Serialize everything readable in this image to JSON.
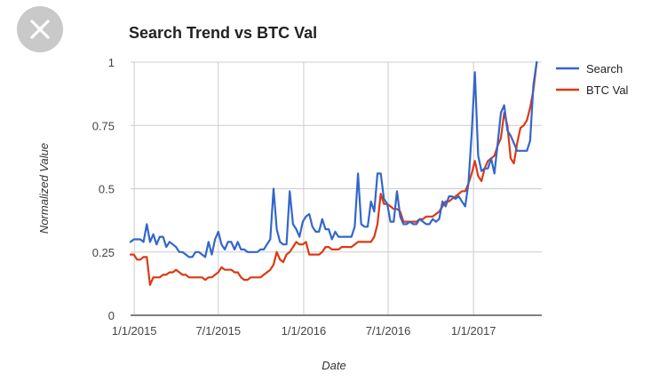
{
  "close_button": {
    "icon": "close-icon",
    "bg_color": "#c9c9c9"
  },
  "chart_data": {
    "type": "line",
    "title": "Search Trend vs BTC Val",
    "xlabel": "Date",
    "ylabel": "Normalized Value",
    "x_ticks": [
      "1/1/2015",
      "7/1/2015",
      "1/1/2016",
      "7/1/2016",
      "1/1/2017"
    ],
    "y_ticks": [
      "0",
      "0.25",
      "0.5",
      "0.75",
      "1"
    ],
    "ylim": [
      0,
      1
    ],
    "xlim": [
      "2014-12-24",
      "2017-05-28"
    ],
    "grid": true,
    "legend": "right",
    "series": [
      {
        "name": "Search",
        "color": "#3366cc",
        "points": [
          [
            "2014-12-24",
            0.29
          ],
          [
            "2014-12-31",
            0.3
          ],
          [
            "2015-01-07",
            0.3
          ],
          [
            "2015-01-14",
            0.3
          ],
          [
            "2015-01-21",
            0.29
          ],
          [
            "2015-01-28",
            0.36
          ],
          [
            "2015-02-04",
            0.29
          ],
          [
            "2015-02-11",
            0.32
          ],
          [
            "2015-02-18",
            0.28
          ],
          [
            "2015-02-25",
            0.31
          ],
          [
            "2015-03-04",
            0.31
          ],
          [
            "2015-03-11",
            0.27
          ],
          [
            "2015-03-18",
            0.29
          ],
          [
            "2015-03-25",
            0.28
          ],
          [
            "2015-04-01",
            0.27
          ],
          [
            "2015-04-08",
            0.25
          ],
          [
            "2015-04-15",
            0.25
          ],
          [
            "2015-04-22",
            0.24
          ],
          [
            "2015-04-29",
            0.23
          ],
          [
            "2015-05-06",
            0.23
          ],
          [
            "2015-05-13",
            0.25
          ],
          [
            "2015-05-20",
            0.25
          ],
          [
            "2015-05-27",
            0.24
          ],
          [
            "2015-06-03",
            0.23
          ],
          [
            "2015-06-10",
            0.29
          ],
          [
            "2015-06-17",
            0.24
          ],
          [
            "2015-06-24",
            0.3
          ],
          [
            "2015-07-01",
            0.33
          ],
          [
            "2015-07-08",
            0.28
          ],
          [
            "2015-07-15",
            0.26
          ],
          [
            "2015-07-22",
            0.29
          ],
          [
            "2015-07-29",
            0.29
          ],
          [
            "2015-08-05",
            0.26
          ],
          [
            "2015-08-12",
            0.29
          ],
          [
            "2015-08-19",
            0.26
          ],
          [
            "2015-08-26",
            0.26
          ],
          [
            "2015-09-02",
            0.25
          ],
          [
            "2015-09-09",
            0.25
          ],
          [
            "2015-09-16",
            0.25
          ],
          [
            "2015-09-23",
            0.25
          ],
          [
            "2015-09-30",
            0.26
          ],
          [
            "2015-10-07",
            0.26
          ],
          [
            "2015-10-14",
            0.28
          ],
          [
            "2015-10-21",
            0.3
          ],
          [
            "2015-10-28",
            0.5
          ],
          [
            "2015-11-04",
            0.34
          ],
          [
            "2015-11-11",
            0.29
          ],
          [
            "2015-11-18",
            0.28
          ],
          [
            "2015-11-25",
            0.28
          ],
          [
            "2015-12-02",
            0.49
          ],
          [
            "2015-12-09",
            0.36
          ],
          [
            "2015-12-16",
            0.34
          ],
          [
            "2015-12-23",
            0.31
          ],
          [
            "2015-12-30",
            0.37
          ],
          [
            "2016-01-06",
            0.39
          ],
          [
            "2016-01-13",
            0.4
          ],
          [
            "2016-01-20",
            0.35
          ],
          [
            "2016-01-27",
            0.33
          ],
          [
            "2016-02-03",
            0.33
          ],
          [
            "2016-02-10",
            0.38
          ],
          [
            "2016-02-17",
            0.34
          ],
          [
            "2016-02-24",
            0.34
          ],
          [
            "2016-03-02",
            0.3
          ],
          [
            "2016-03-09",
            0.33
          ],
          [
            "2016-03-16",
            0.31
          ],
          [
            "2016-03-23",
            0.31
          ],
          [
            "2016-03-30",
            0.31
          ],
          [
            "2016-04-06",
            0.31
          ],
          [
            "2016-04-13",
            0.31
          ],
          [
            "2016-04-20",
            0.35
          ],
          [
            "2016-04-27",
            0.56
          ],
          [
            "2016-05-04",
            0.36
          ],
          [
            "2016-05-11",
            0.35
          ],
          [
            "2016-05-18",
            0.35
          ],
          [
            "2016-05-25",
            0.45
          ],
          [
            "2016-06-01",
            0.41
          ],
          [
            "2016-06-08",
            0.56
          ],
          [
            "2016-06-15",
            0.56
          ],
          [
            "2016-06-22",
            0.46
          ],
          [
            "2016-06-29",
            0.44
          ],
          [
            "2016-07-06",
            0.37
          ],
          [
            "2016-07-13",
            0.37
          ],
          [
            "2016-07-20",
            0.49
          ],
          [
            "2016-07-27",
            0.39
          ],
          [
            "2016-08-03",
            0.36
          ],
          [
            "2016-08-10",
            0.36
          ],
          [
            "2016-08-17",
            0.37
          ],
          [
            "2016-08-24",
            0.36
          ],
          [
            "2016-08-31",
            0.36
          ],
          [
            "2016-09-07",
            0.38
          ],
          [
            "2016-09-14",
            0.37
          ],
          [
            "2016-09-21",
            0.36
          ],
          [
            "2016-09-28",
            0.36
          ],
          [
            "2016-10-05",
            0.38
          ],
          [
            "2016-10-12",
            0.37
          ],
          [
            "2016-10-19",
            0.38
          ],
          [
            "2016-10-26",
            0.45
          ],
          [
            "2016-11-02",
            0.43
          ],
          [
            "2016-11-09",
            0.47
          ],
          [
            "2016-11-16",
            0.47
          ],
          [
            "2016-11-23",
            0.46
          ],
          [
            "2016-11-30",
            0.47
          ],
          [
            "2016-12-07",
            0.45
          ],
          [
            "2016-12-14",
            0.43
          ],
          [
            "2016-12-21",
            0.52
          ],
          [
            "2016-12-28",
            0.72
          ],
          [
            "2017-01-04",
            0.96
          ],
          [
            "2017-01-11",
            0.63
          ],
          [
            "2017-01-18",
            0.57
          ],
          [
            "2017-01-25",
            0.58
          ],
          [
            "2017-02-01",
            0.58
          ],
          [
            "2017-02-08",
            0.62
          ],
          [
            "2017-02-15",
            0.56
          ],
          [
            "2017-02-22",
            0.68
          ],
          [
            "2017-03-01",
            0.8
          ],
          [
            "2017-03-08",
            0.83
          ],
          [
            "2017-03-15",
            0.73
          ],
          [
            "2017-03-22",
            0.71
          ],
          [
            "2017-03-29",
            0.68
          ],
          [
            "2017-04-05",
            0.65
          ],
          [
            "2017-04-12",
            0.65
          ],
          [
            "2017-04-19",
            0.65
          ],
          [
            "2017-04-26",
            0.65
          ],
          [
            "2017-05-03",
            0.69
          ],
          [
            "2017-05-10",
            0.91
          ],
          [
            "2017-05-17",
            1.0
          ]
        ]
      },
      {
        "name": "BTC Val",
        "color": "#dc3912",
        "points": [
          [
            "2014-12-24",
            0.24
          ],
          [
            "2014-12-31",
            0.24
          ],
          [
            "2015-01-07",
            0.22
          ],
          [
            "2015-01-14",
            0.22
          ],
          [
            "2015-01-21",
            0.23
          ],
          [
            "2015-01-28",
            0.23
          ],
          [
            "2015-02-04",
            0.12
          ],
          [
            "2015-02-11",
            0.15
          ],
          [
            "2015-02-18",
            0.15
          ],
          [
            "2015-02-25",
            0.15
          ],
          [
            "2015-03-04",
            0.16
          ],
          [
            "2015-03-11",
            0.16
          ],
          [
            "2015-03-18",
            0.17
          ],
          [
            "2015-03-25",
            0.17
          ],
          [
            "2015-04-01",
            0.18
          ],
          [
            "2015-04-08",
            0.17
          ],
          [
            "2015-04-15",
            0.16
          ],
          [
            "2015-04-22",
            0.16
          ],
          [
            "2015-04-29",
            0.15
          ],
          [
            "2015-05-06",
            0.15
          ],
          [
            "2015-05-13",
            0.15
          ],
          [
            "2015-05-20",
            0.15
          ],
          [
            "2015-05-27",
            0.15
          ],
          [
            "2015-06-03",
            0.14
          ],
          [
            "2015-06-10",
            0.15
          ],
          [
            "2015-06-17",
            0.15
          ],
          [
            "2015-06-24",
            0.16
          ],
          [
            "2015-07-01",
            0.17
          ],
          [
            "2015-07-08",
            0.19
          ],
          [
            "2015-07-15",
            0.18
          ],
          [
            "2015-07-22",
            0.18
          ],
          [
            "2015-07-29",
            0.18
          ],
          [
            "2015-08-05",
            0.17
          ],
          [
            "2015-08-12",
            0.17
          ],
          [
            "2015-08-19",
            0.15
          ],
          [
            "2015-08-26",
            0.14
          ],
          [
            "2015-09-02",
            0.14
          ],
          [
            "2015-09-09",
            0.15
          ],
          [
            "2015-09-16",
            0.15
          ],
          [
            "2015-09-23",
            0.15
          ],
          [
            "2015-09-30",
            0.15
          ],
          [
            "2015-10-07",
            0.16
          ],
          [
            "2015-10-14",
            0.17
          ],
          [
            "2015-10-21",
            0.18
          ],
          [
            "2015-10-28",
            0.2
          ],
          [
            "2015-11-04",
            0.25
          ],
          [
            "2015-11-11",
            0.22
          ],
          [
            "2015-11-18",
            0.21
          ],
          [
            "2015-11-25",
            0.24
          ],
          [
            "2015-12-02",
            0.25
          ],
          [
            "2015-12-09",
            0.27
          ],
          [
            "2015-12-16",
            0.29
          ],
          [
            "2015-12-23",
            0.28
          ],
          [
            "2015-12-30",
            0.28
          ],
          [
            "2016-01-06",
            0.29
          ],
          [
            "2016-01-13",
            0.24
          ],
          [
            "2016-01-20",
            0.24
          ],
          [
            "2016-01-27",
            0.24
          ],
          [
            "2016-02-03",
            0.24
          ],
          [
            "2016-02-10",
            0.25
          ],
          [
            "2016-02-17",
            0.27
          ],
          [
            "2016-02-24",
            0.27
          ],
          [
            "2016-03-02",
            0.26
          ],
          [
            "2016-03-09",
            0.26
          ],
          [
            "2016-03-16",
            0.26
          ],
          [
            "2016-03-23",
            0.27
          ],
          [
            "2016-03-30",
            0.27
          ],
          [
            "2016-04-06",
            0.27
          ],
          [
            "2016-04-13",
            0.27
          ],
          [
            "2016-04-20",
            0.28
          ],
          [
            "2016-04-27",
            0.29
          ],
          [
            "2016-05-04",
            0.29
          ],
          [
            "2016-05-11",
            0.29
          ],
          [
            "2016-05-18",
            0.29
          ],
          [
            "2016-05-25",
            0.29
          ],
          [
            "2016-06-01",
            0.31
          ],
          [
            "2016-06-08",
            0.36
          ],
          [
            "2016-06-15",
            0.48
          ],
          [
            "2016-06-22",
            0.44
          ],
          [
            "2016-06-29",
            0.44
          ],
          [
            "2016-07-06",
            0.43
          ],
          [
            "2016-07-13",
            0.42
          ],
          [
            "2016-07-20",
            0.42
          ],
          [
            "2016-07-27",
            0.41
          ],
          [
            "2016-08-03",
            0.37
          ],
          [
            "2016-08-10",
            0.37
          ],
          [
            "2016-08-17",
            0.37
          ],
          [
            "2016-08-24",
            0.37
          ],
          [
            "2016-08-31",
            0.37
          ],
          [
            "2016-09-07",
            0.38
          ],
          [
            "2016-09-14",
            0.38
          ],
          [
            "2016-09-21",
            0.39
          ],
          [
            "2016-09-28",
            0.39
          ],
          [
            "2016-10-05",
            0.39
          ],
          [
            "2016-10-12",
            0.4
          ],
          [
            "2016-10-19",
            0.41
          ],
          [
            "2016-10-26",
            0.43
          ],
          [
            "2016-11-02",
            0.45
          ],
          [
            "2016-11-09",
            0.45
          ],
          [
            "2016-11-16",
            0.46
          ],
          [
            "2016-11-23",
            0.47
          ],
          [
            "2016-11-30",
            0.48
          ],
          [
            "2016-12-07",
            0.49
          ],
          [
            "2016-12-14",
            0.49
          ],
          [
            "2016-12-21",
            0.52
          ],
          [
            "2016-12-28",
            0.56
          ],
          [
            "2017-01-04",
            0.61
          ],
          [
            "2017-01-11",
            0.55
          ],
          [
            "2017-01-18",
            0.53
          ],
          [
            "2017-01-25",
            0.58
          ],
          [
            "2017-02-01",
            0.61
          ],
          [
            "2017-02-08",
            0.62
          ],
          [
            "2017-02-15",
            0.63
          ],
          [
            "2017-02-22",
            0.67
          ],
          [
            "2017-03-01",
            0.7
          ],
          [
            "2017-03-08",
            0.8
          ],
          [
            "2017-03-15",
            0.75
          ],
          [
            "2017-03-22",
            0.62
          ],
          [
            "2017-03-29",
            0.6
          ],
          [
            "2017-04-05",
            0.68
          ],
          [
            "2017-04-12",
            0.74
          ],
          [
            "2017-04-19",
            0.75
          ],
          [
            "2017-04-26",
            0.77
          ],
          [
            "2017-05-03",
            0.82
          ],
          [
            "2017-05-10",
            0.89
          ],
          [
            "2017-05-17",
            1.0
          ]
        ]
      }
    ]
  }
}
